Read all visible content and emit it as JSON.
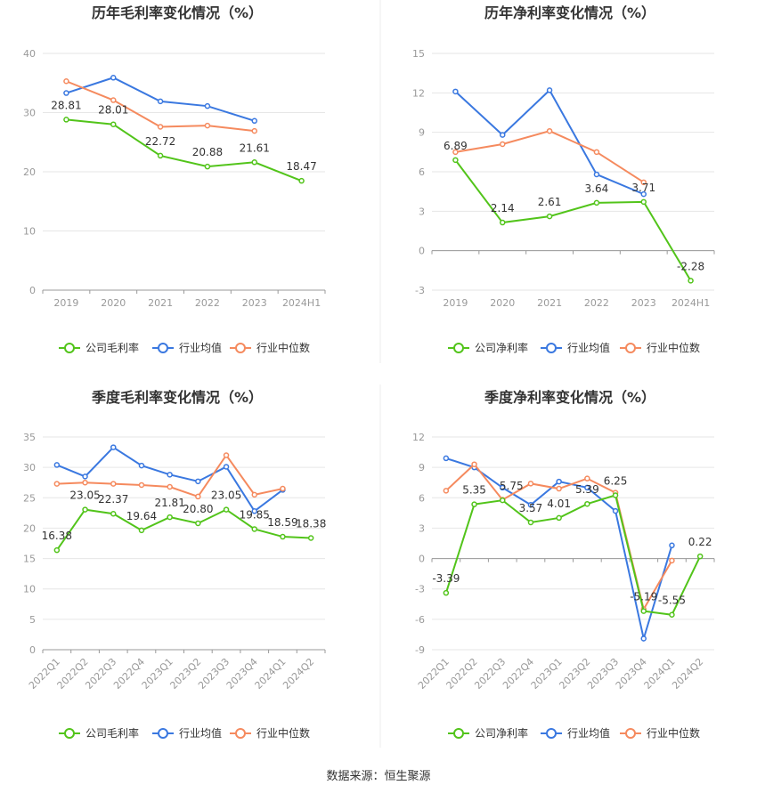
{
  "source_text": "数据来源：恒生聚源",
  "colors": {
    "company": "#52c41a",
    "avg": "#3a78e0",
    "median": "#f58a5e",
    "divider": "#eeeeee"
  },
  "chart_data": [
    {
      "type": "line",
      "title": "历年毛利率变化情况（%）",
      "categories": [
        "2019",
        "2020",
        "2021",
        "2022",
        "2023",
        "2024H1"
      ],
      "ylim": [
        0,
        40
      ],
      "yticks": [
        0,
        10,
        20,
        30,
        40
      ],
      "tick_labels_rotated": false,
      "series": [
        {
          "name": "公司毛利率",
          "key": "company",
          "values": [
            28.81,
            28.01,
            22.72,
            20.88,
            21.61,
            18.47
          ],
          "labels": [
            "28.81",
            "28.01",
            "22.72",
            "20.88",
            "21.61",
            "18.47"
          ]
        },
        {
          "name": "行业均值",
          "key": "avg",
          "values": [
            33.3,
            35.9,
            31.9,
            31.1,
            28.6,
            null
          ]
        },
        {
          "name": "行业中位数",
          "key": "median",
          "values": [
            35.3,
            32.1,
            27.6,
            27.8,
            26.9,
            null
          ]
        }
      ]
    },
    {
      "type": "line",
      "title": "历年净利率变化情况（%）",
      "categories": [
        "2019",
        "2020",
        "2021",
        "2022",
        "2023",
        "2024H1"
      ],
      "ylim": [
        -3,
        15
      ],
      "yticks": [
        -3,
        0,
        3,
        6,
        9,
        12,
        15
      ],
      "tick_labels_rotated": false,
      "series": [
        {
          "name": "公司净利率",
          "key": "company",
          "values": [
            6.89,
            2.14,
            2.61,
            3.64,
            3.71,
            -2.28
          ],
          "labels": [
            "6.89",
            "2.14",
            "2.61",
            "3.64",
            "3.71",
            "-2.28"
          ]
        },
        {
          "name": "行业均值",
          "key": "avg",
          "values": [
            12.1,
            8.8,
            12.2,
            5.8,
            4.3,
            null
          ]
        },
        {
          "name": "行业中位数",
          "key": "median",
          "values": [
            7.5,
            8.1,
            9.1,
            7.5,
            5.2,
            null
          ]
        }
      ]
    },
    {
      "type": "line",
      "title": "季度毛利率变化情况（%）",
      "categories": [
        "2022Q1",
        "2022Q2",
        "2022Q3",
        "2022Q4",
        "2023Q1",
        "2023Q2",
        "2023Q3",
        "2023Q4",
        "2024Q1",
        "2024Q2"
      ],
      "ylim": [
        0,
        35
      ],
      "yticks": [
        0,
        5,
        10,
        15,
        20,
        25,
        30,
        35
      ],
      "tick_labels_rotated": true,
      "series": [
        {
          "name": "公司毛利率",
          "key": "company",
          "values": [
            16.38,
            23.05,
            22.37,
            19.64,
            21.81,
            20.8,
            23.05,
            19.85,
            18.59,
            18.38
          ],
          "labels": [
            "16.38",
            "23.05",
            "22.37",
            "19.64",
            "21.81",
            "20.80",
            "23.05",
            "19.85",
            "18.59",
            "18.38"
          ]
        },
        {
          "name": "行业均值",
          "key": "avg",
          "values": [
            30.4,
            28.5,
            33.3,
            30.3,
            28.8,
            27.7,
            30.1,
            22.8,
            26.3,
            null
          ]
        },
        {
          "name": "行业中位数",
          "key": "median",
          "values": [
            27.3,
            27.5,
            27.3,
            27.1,
            26.8,
            25.2,
            32.0,
            25.5,
            26.5,
            null
          ]
        }
      ]
    },
    {
      "type": "line",
      "title": "季度净利率变化情况（%）",
      "categories": [
        "2022Q1",
        "2022Q2",
        "2022Q3",
        "2022Q4",
        "2023Q1",
        "2023Q2",
        "2023Q3",
        "2023Q4",
        "2024Q1",
        "2024Q2"
      ],
      "ylim": [
        -9,
        12
      ],
      "yticks": [
        -9,
        -6,
        -3,
        0,
        3,
        6,
        9,
        12
      ],
      "tick_labels_rotated": true,
      "series": [
        {
          "name": "公司净利率",
          "key": "company",
          "values": [
            -3.39,
            5.35,
            5.75,
            3.57,
            4.01,
            5.39,
            6.25,
            -5.19,
            -5.55,
            0.22
          ],
          "labels": [
            "-3.39",
            "5.35",
            "5.75",
            "3.57",
            "4.01",
            "5.39",
            "6.25",
            "-5.19",
            "-5.55",
            "0.22"
          ]
        },
        {
          "name": "行业均值",
          "key": "avg",
          "values": [
            9.9,
            9.0,
            7.0,
            5.3,
            7.6,
            7.0,
            4.7,
            -7.9,
            1.3,
            null
          ]
        },
        {
          "name": "行业中位数",
          "key": "median",
          "values": [
            6.7,
            9.3,
            5.8,
            7.4,
            6.9,
            7.9,
            6.5,
            -5.0,
            -0.2,
            null
          ]
        }
      ]
    }
  ]
}
